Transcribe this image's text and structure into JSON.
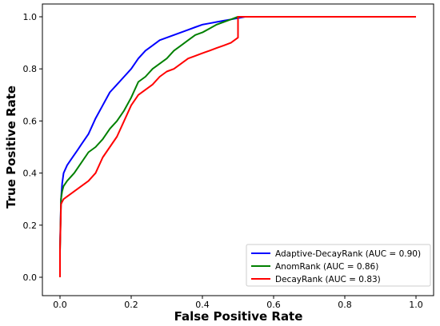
{
  "chart_data": {
    "type": "line",
    "title": "",
    "xlabel": "False Positive Rate",
    "ylabel": "True Positive Rate",
    "xlim": [
      0.0,
      1.0
    ],
    "ylim": [
      0.0,
      1.0
    ],
    "xticks": [
      "0.0",
      "0.2",
      "0.4",
      "0.6",
      "0.8",
      "1.0"
    ],
    "yticks": [
      "0.0",
      "0.2",
      "0.4",
      "0.6",
      "0.8",
      "1.0"
    ],
    "grid": false,
    "legend_position": "lower-right",
    "series": [
      {
        "name": "Adaptive-DecayRank (AUC = 0.90)",
        "color": "#0000ff",
        "x": [
          0.0,
          0.0,
          0.003,
          0.006,
          0.01,
          0.02,
          0.03,
          0.04,
          0.05,
          0.06,
          0.08,
          0.1,
          0.12,
          0.14,
          0.16,
          0.18,
          0.2,
          0.22,
          0.24,
          0.26,
          0.28,
          0.3,
          0.32,
          0.34,
          0.36,
          0.38,
          0.4,
          0.42,
          0.44,
          0.46,
          0.48,
          0.5,
          0.52,
          0.54,
          1.0
        ],
        "y": [
          0.0,
          0.12,
          0.3,
          0.36,
          0.4,
          0.43,
          0.45,
          0.47,
          0.49,
          0.51,
          0.55,
          0.61,
          0.66,
          0.71,
          0.74,
          0.77,
          0.8,
          0.84,
          0.87,
          0.89,
          0.91,
          0.92,
          0.93,
          0.94,
          0.95,
          0.96,
          0.97,
          0.975,
          0.98,
          0.985,
          0.99,
          0.995,
          1.0,
          1.0,
          1.0
        ]
      },
      {
        "name": "AnomRank (AUC = 0.86)",
        "color": "#008000",
        "x": [
          0.0,
          0.0,
          0.003,
          0.006,
          0.01,
          0.02,
          0.04,
          0.06,
          0.08,
          0.1,
          0.12,
          0.14,
          0.16,
          0.18,
          0.2,
          0.22,
          0.24,
          0.26,
          0.28,
          0.3,
          0.32,
          0.34,
          0.36,
          0.38,
          0.4,
          0.42,
          0.44,
          0.46,
          0.48,
          0.5,
          0.52,
          1.0
        ],
        "y": [
          0.0,
          0.1,
          0.3,
          0.33,
          0.35,
          0.37,
          0.4,
          0.44,
          0.48,
          0.5,
          0.53,
          0.57,
          0.6,
          0.64,
          0.69,
          0.75,
          0.77,
          0.8,
          0.82,
          0.84,
          0.87,
          0.89,
          0.91,
          0.93,
          0.94,
          0.955,
          0.97,
          0.98,
          0.99,
          1.0,
          1.0,
          1.0
        ]
      },
      {
        "name": "DecayRank (AUC = 0.83)",
        "color": "#ff0000",
        "x": [
          0.0,
          0.0,
          0.003,
          0.006,
          0.01,
          0.02,
          0.04,
          0.06,
          0.08,
          0.1,
          0.12,
          0.14,
          0.16,
          0.18,
          0.2,
          0.22,
          0.24,
          0.26,
          0.28,
          0.3,
          0.32,
          0.34,
          0.36,
          0.38,
          0.4,
          0.42,
          0.44,
          0.46,
          0.48,
          0.5,
          0.5,
          0.52,
          1.0
        ],
        "y": [
          0.0,
          0.1,
          0.28,
          0.29,
          0.3,
          0.31,
          0.33,
          0.35,
          0.37,
          0.4,
          0.46,
          0.5,
          0.54,
          0.6,
          0.66,
          0.7,
          0.72,
          0.74,
          0.77,
          0.79,
          0.8,
          0.82,
          0.84,
          0.85,
          0.86,
          0.87,
          0.88,
          0.89,
          0.9,
          0.92,
          1.0,
          1.0,
          1.0
        ]
      }
    ]
  }
}
